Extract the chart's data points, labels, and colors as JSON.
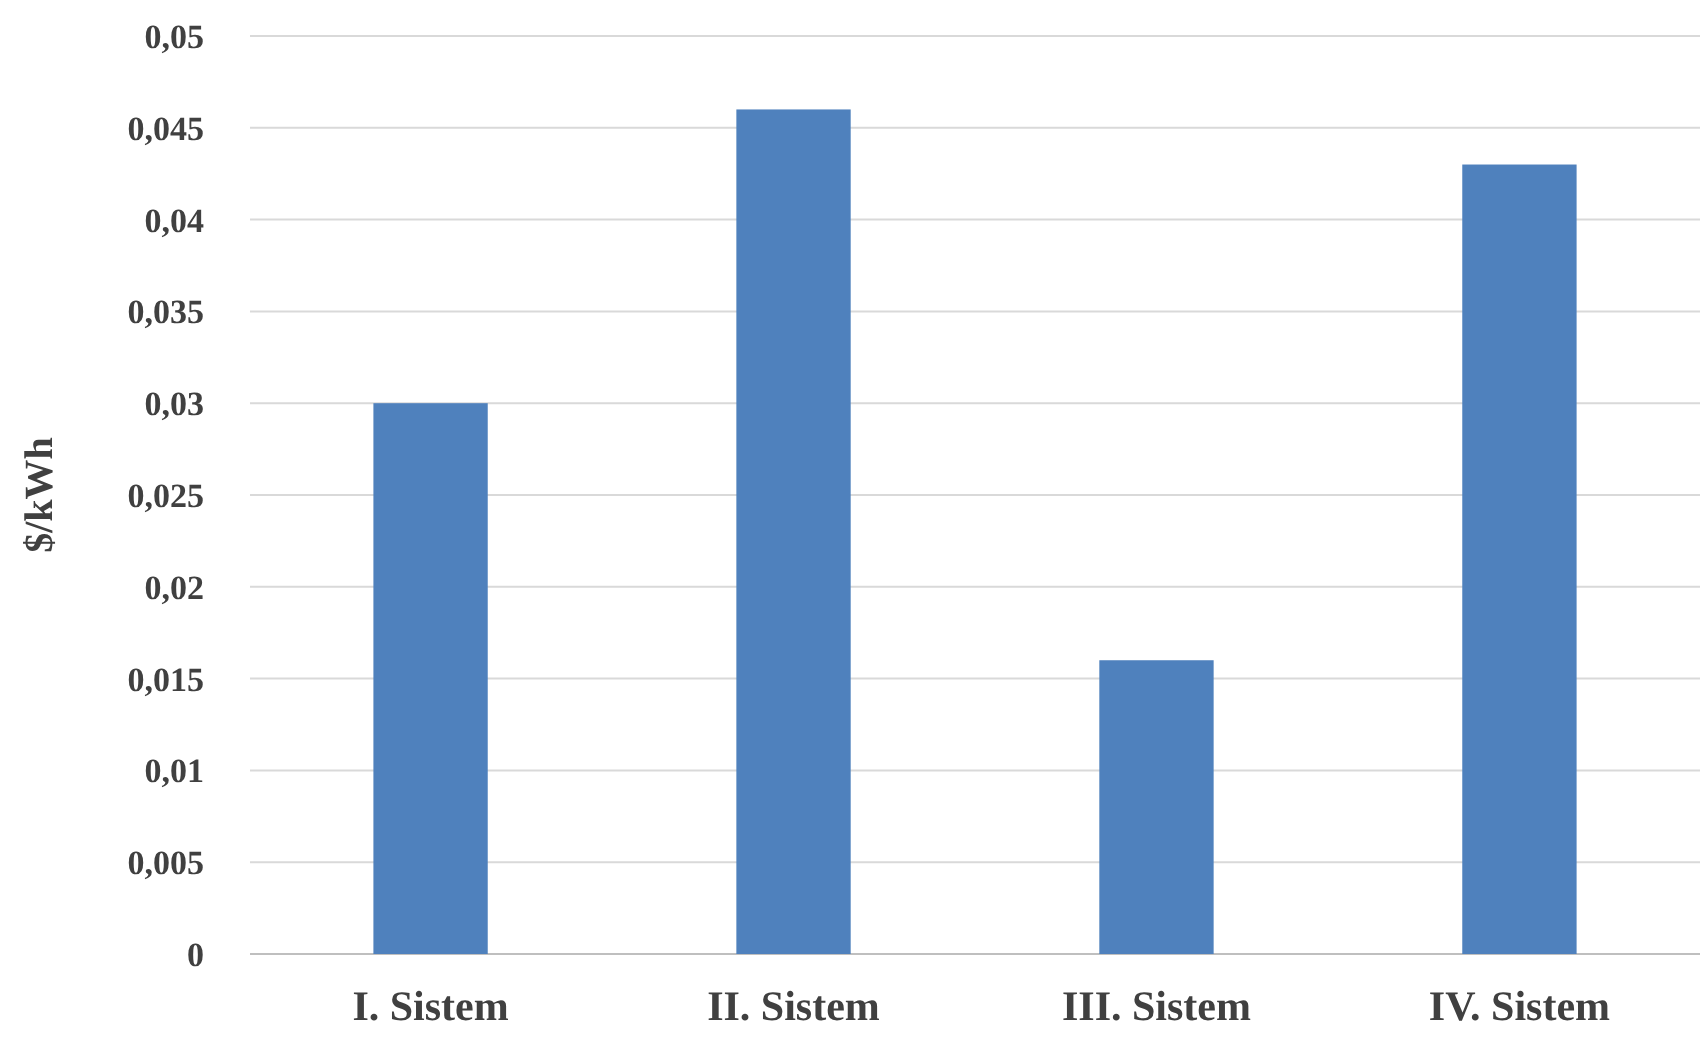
{
  "chart_data": {
    "type": "bar",
    "ylabel": "$/kWh",
    "categories": [
      "I. Sistem",
      "II. Sistem",
      "III. Sistem",
      "IV. Sistem"
    ],
    "values": [
      0.03,
      0.046,
      0.016,
      0.043
    ],
    "color": "#4f81bd",
    "ylim": [
      0,
      0.05
    ],
    "yticks": [
      {
        "value": 0,
        "label": "0"
      },
      {
        "value": 0.005,
        "label": "0,005"
      },
      {
        "value": 0.01,
        "label": "0,01"
      },
      {
        "value": 0.015,
        "label": "0,015"
      },
      {
        "value": 0.02,
        "label": "0,02"
      },
      {
        "value": 0.025,
        "label": "0,025"
      },
      {
        "value": 0.03,
        "label": "0,03"
      },
      {
        "value": 0.035,
        "label": "0,035"
      },
      {
        "value": 0.04,
        "label": "0,04"
      },
      {
        "value": 0.045,
        "label": "0,045"
      },
      {
        "value": 0.05,
        "label": "0,05"
      }
    ],
    "grid": "y"
  }
}
